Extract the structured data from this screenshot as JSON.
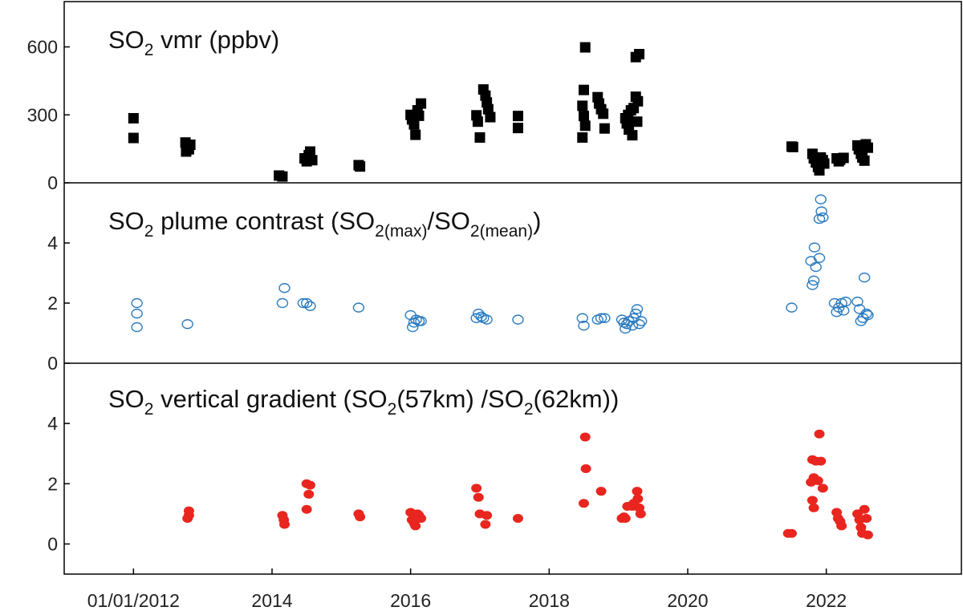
{
  "chart_data": [
    {
      "type": "scatter",
      "title": "SO₂ vmr (ppbv)",
      "title_parts": [
        "SO",
        "2",
        " vmr (ppbv)"
      ],
      "marker": "square",
      "color": "#000000",
      "y_ticks": [
        "0",
        "300",
        "600"
      ],
      "y_tick_values": [
        0,
        300,
        600
      ],
      "ylim": [
        0,
        800
      ],
      "points": [
        [
          2012.0,
          285
        ],
        [
          2012.0,
          198
        ],
        [
          2012.75,
          178
        ],
        [
          2012.77,
          160
        ],
        [
          2012.8,
          148
        ],
        [
          2012.76,
          138
        ],
        [
          2012.82,
          168
        ],
        [
          2014.1,
          32
        ],
        [
          2014.15,
          28
        ],
        [
          2014.47,
          108
        ],
        [
          2014.5,
          95
        ],
        [
          2014.53,
          122
        ],
        [
          2014.55,
          138
        ],
        [
          2014.58,
          100
        ],
        [
          2015.25,
          78
        ],
        [
          2015.27,
          72
        ],
        [
          2016.0,
          300
        ],
        [
          2016.02,
          280
        ],
        [
          2016.05,
          258
        ],
        [
          2016.07,
          212
        ],
        [
          2016.1,
          320
        ],
        [
          2016.12,
          296
        ],
        [
          2016.15,
          350
        ],
        [
          2016.95,
          298
        ],
        [
          2016.97,
          270
        ],
        [
          2017.0,
          200
        ],
        [
          2017.05,
          412
        ],
        [
          2017.08,
          385
        ],
        [
          2017.1,
          355
        ],
        [
          2017.12,
          325
        ],
        [
          2017.15,
          290
        ],
        [
          2017.55,
          295
        ],
        [
          2017.55,
          242
        ],
        [
          2018.52,
          598
        ],
        [
          2018.5,
          410
        ],
        [
          2018.48,
          340
        ],
        [
          2018.5,
          295
        ],
        [
          2018.52,
          252
        ],
        [
          2018.48,
          200
        ],
        [
          2018.7,
          378
        ],
        [
          2018.72,
          350
        ],
        [
          2018.75,
          325
        ],
        [
          2018.78,
          305
        ],
        [
          2018.8,
          240
        ],
        [
          2019.1,
          285
        ],
        [
          2019.12,
          262
        ],
        [
          2019.15,
          235
        ],
        [
          2019.14,
          300
        ],
        [
          2019.18,
          320
        ],
        [
          2019.2,
          210
        ],
        [
          2019.25,
          555
        ],
        [
          2019.3,
          568
        ],
        [
          2019.25,
          380
        ],
        [
          2019.28,
          360
        ],
        [
          2019.22,
          330
        ],
        [
          2019.27,
          270
        ],
        [
          2021.5,
          160
        ],
        [
          2021.52,
          158
        ],
        [
          2021.8,
          128
        ],
        [
          2021.82,
          108
        ],
        [
          2021.85,
          90
        ],
        [
          2021.88,
          70
        ],
        [
          2021.9,
          55
        ],
        [
          2021.92,
          112
        ],
        [
          2021.95,
          100
        ],
        [
          2021.97,
          85
        ],
        [
          2022.15,
          108
        ],
        [
          2022.18,
          95
        ],
        [
          2022.2,
          102
        ],
        [
          2022.25,
          110
        ],
        [
          2022.45,
          165
        ],
        [
          2022.47,
          148
        ],
        [
          2022.5,
          128
        ],
        [
          2022.52,
          112
        ],
        [
          2022.55,
          98
        ],
        [
          2022.57,
          170
        ],
        [
          2022.6,
          155
        ]
      ]
    },
    {
      "type": "scatter",
      "title": "SO₂ plume contrast (SO₂₍ₘₐₓ₎/SO₂₍ₘₑₐₙ₎)",
      "title_parts": [
        "SO",
        "2",
        " plume contrast (SO",
        "2(max)",
        "/SO",
        "2(mean)",
        ")"
      ],
      "marker": "open-circle",
      "color": "#2a7bbf",
      "y_ticks": [
        "0",
        "2",
        "4"
      ],
      "y_tick_values": [
        0,
        2,
        4
      ],
      "ylim": [
        0,
        6
      ],
      "points": [
        [
          2012.05,
          2.0
        ],
        [
          2012.05,
          1.65
        ],
        [
          2012.05,
          1.2
        ],
        [
          2012.78,
          1.3
        ],
        [
          2014.18,
          2.5
        ],
        [
          2014.15,
          2.0
        ],
        [
          2014.45,
          2.0
        ],
        [
          2014.5,
          2.0
        ],
        [
          2014.55,
          1.9
        ],
        [
          2015.25,
          1.85
        ],
        [
          2016.0,
          1.6
        ],
        [
          2016.03,
          1.2
        ],
        [
          2016.05,
          1.35
        ],
        [
          2016.08,
          1.45
        ],
        [
          2016.12,
          1.4
        ],
        [
          2016.15,
          1.4
        ],
        [
          2016.95,
          1.5
        ],
        [
          2016.98,
          1.65
        ],
        [
          2017.02,
          1.55
        ],
        [
          2017.05,
          1.5
        ],
        [
          2017.1,
          1.45
        ],
        [
          2017.55,
          1.45
        ],
        [
          2018.48,
          1.5
        ],
        [
          2018.5,
          1.25
        ],
        [
          2018.7,
          1.45
        ],
        [
          2018.75,
          1.5
        ],
        [
          2018.8,
          1.5
        ],
        [
          2019.05,
          1.45
        ],
        [
          2019.08,
          1.35
        ],
        [
          2019.1,
          1.15
        ],
        [
          2019.12,
          1.3
        ],
        [
          2019.15,
          1.4
        ],
        [
          2019.2,
          1.25
        ],
        [
          2019.22,
          1.5
        ],
        [
          2019.25,
          1.65
        ],
        [
          2019.27,
          1.8
        ],
        [
          2019.3,
          1.3
        ],
        [
          2019.33,
          1.4
        ],
        [
          2021.5,
          1.85
        ],
        [
          2021.8,
          2.6
        ],
        [
          2021.82,
          2.75
        ],
        [
          2021.78,
          3.4
        ],
        [
          2021.85,
          3.2
        ],
        [
          2021.83,
          3.85
        ],
        [
          2021.9,
          3.5
        ],
        [
          2021.9,
          4.8
        ],
        [
          2021.93,
          5.05
        ],
        [
          2021.92,
          5.45
        ],
        [
          2021.95,
          4.85
        ],
        [
          2022.12,
          2.0
        ],
        [
          2022.15,
          1.7
        ],
        [
          2022.18,
          1.85
        ],
        [
          2022.22,
          2.0
        ],
        [
          2022.25,
          1.75
        ],
        [
          2022.28,
          2.05
        ],
        [
          2022.45,
          2.05
        ],
        [
          2022.48,
          1.8
        ],
        [
          2022.5,
          1.4
        ],
        [
          2022.53,
          1.5
        ],
        [
          2022.55,
          2.85
        ],
        [
          2022.58,
          1.65
        ],
        [
          2022.6,
          1.6
        ]
      ]
    },
    {
      "type": "scatter",
      "title": "SO₂ vertical gradient (SO₂(57km) /SO₂(62km))",
      "title_parts": [
        "SO",
        "2",
        " vertical gradient (SO",
        "2",
        "(57km) /SO",
        "2",
        "(62km))"
      ],
      "marker": "filled-circle",
      "color": "#e8261f",
      "y_ticks": [
        "0",
        "2",
        "4"
      ],
      "y_tick_values": [
        0,
        2,
        4
      ],
      "ylim": [
        -1,
        6
      ],
      "points": [
        [
          2012.8,
          1.1
        ],
        [
          2012.8,
          0.95
        ],
        [
          2012.78,
          0.85
        ],
        [
          2014.15,
          0.95
        ],
        [
          2014.17,
          0.8
        ],
        [
          2014.18,
          0.65
        ],
        [
          2014.5,
          2.0
        ],
        [
          2014.55,
          1.95
        ],
        [
          2014.53,
          1.65
        ],
        [
          2014.5,
          1.15
        ],
        [
          2015.25,
          1.0
        ],
        [
          2015.27,
          0.9
        ],
        [
          2016.0,
          1.05
        ],
        [
          2016.02,
          0.8
        ],
        [
          2016.05,
          0.7
        ],
        [
          2016.07,
          0.6
        ],
        [
          2016.1,
          1.0
        ],
        [
          2016.12,
          0.95
        ],
        [
          2016.15,
          0.85
        ],
        [
          2016.95,
          1.85
        ],
        [
          2016.98,
          1.55
        ],
        [
          2017.0,
          1.0
        ],
        [
          2017.08,
          0.65
        ],
        [
          2017.1,
          0.95
        ],
        [
          2017.55,
          0.85
        ],
        [
          2018.52,
          3.55
        ],
        [
          2018.53,
          2.5
        ],
        [
          2018.5,
          1.35
        ],
        [
          2018.75,
          1.75
        ],
        [
          2019.05,
          0.85
        ],
        [
          2019.08,
          0.9
        ],
        [
          2019.1,
          0.85
        ],
        [
          2019.13,
          1.25
        ],
        [
          2019.2,
          1.25
        ],
        [
          2019.22,
          1.35
        ],
        [
          2019.27,
          1.75
        ],
        [
          2019.28,
          1.5
        ],
        [
          2019.3,
          1.2
        ],
        [
          2019.32,
          1.0
        ],
        [
          2021.45,
          0.35
        ],
        [
          2021.5,
          0.35
        ],
        [
          2021.78,
          2.05
        ],
        [
          2021.8,
          2.8
        ],
        [
          2021.82,
          2.2
        ],
        [
          2021.85,
          2.75
        ],
        [
          2021.8,
          1.45
        ],
        [
          2021.82,
          1.2
        ],
        [
          2021.88,
          2.1
        ],
        [
          2021.9,
          3.65
        ],
        [
          2021.92,
          2.75
        ],
        [
          2021.95,
          1.85
        ],
        [
          2022.15,
          1.05
        ],
        [
          2022.17,
          0.85
        ],
        [
          2022.2,
          0.75
        ],
        [
          2022.22,
          0.6
        ],
        [
          2022.45,
          1.0
        ],
        [
          2022.48,
          0.8
        ],
        [
          2022.5,
          0.55
        ],
        [
          2022.52,
          0.35
        ],
        [
          2022.55,
          1.15
        ],
        [
          2022.58,
          0.85
        ],
        [
          2022.6,
          0.3
        ]
      ]
    }
  ],
  "x_axis": {
    "ticks": [
      "01/01/2012",
      "2014",
      "2016",
      "2018",
      "2020",
      "2022"
    ],
    "tick_values": [
      2012,
      2014,
      2016,
      2018,
      2020,
      2022
    ],
    "xlim": [
      2011.0,
      2023.95
    ]
  }
}
